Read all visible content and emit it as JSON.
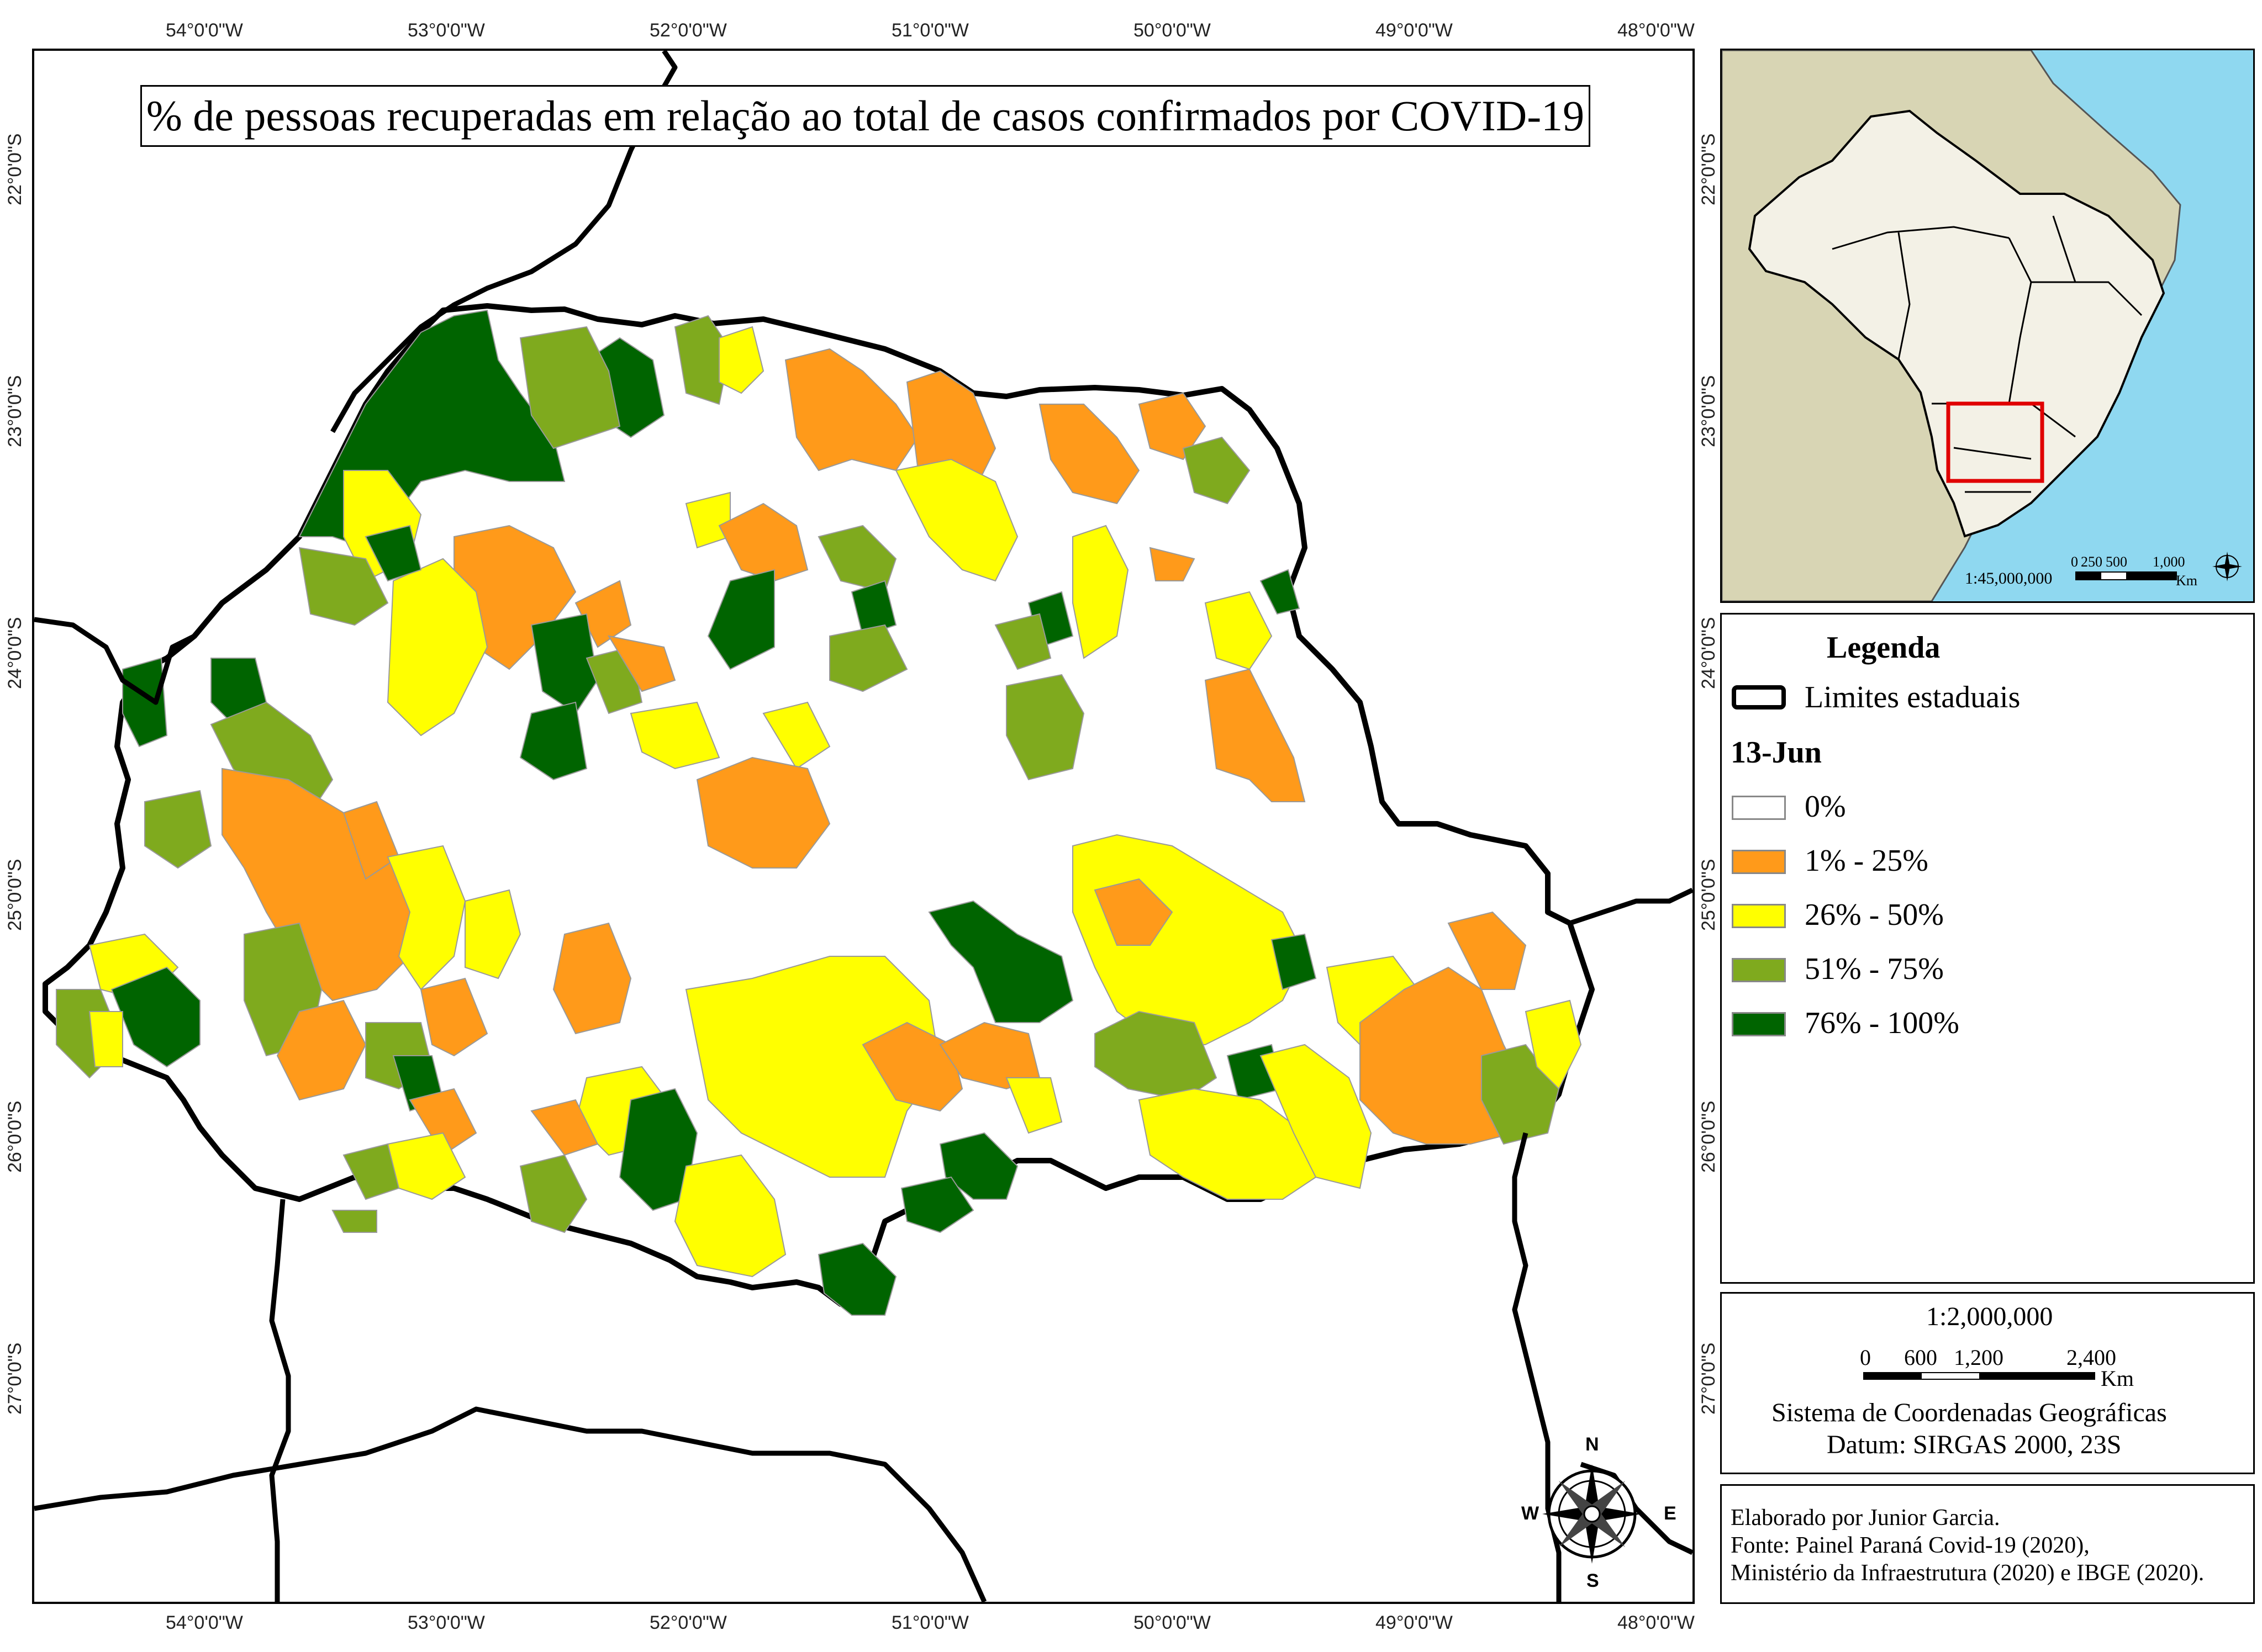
{
  "title": "% de pessoas recuperadas em relação ao total de casos confirmados por COVID-19",
  "lon_ticks": [
    "54°0'0\"W",
    "53°0'0\"W",
    "52°0'0\"W",
    "51°0'0\"W",
    "50°0'0\"W",
    "49°0'0\"W",
    "48°0'0\"W"
  ],
  "lat_ticks": [
    "22°0'0\"S",
    "23°0'0\"S",
    "24°0'0\"S",
    "25°0'0\"S",
    "26°0'0\"S",
    "27°0'0\"S"
  ],
  "inset": {
    "scale_text": "1:45,000,000",
    "scalebar_labels": [
      "0",
      "250",
      "500",
      "1,000"
    ],
    "scalebar_unit": "Km"
  },
  "legend": {
    "title": "Legenda",
    "boundary_label": "Limites estaduais",
    "date": "13-Jun",
    "classes": [
      {
        "label": "0%",
        "color": "#ffffff"
      },
      {
        "label": "1% - 25%",
        "color": "#ff9a1a"
      },
      {
        "label": "26% - 50%",
        "color": "#ffff00"
      },
      {
        "label": "51% - 75%",
        "color": "#7faa1e"
      },
      {
        "label": "76% - 100%",
        "color": "#006400"
      }
    ]
  },
  "scale": {
    "ratio": "1:2,000,000",
    "bar_labels": [
      "0",
      "600",
      "1,200",
      "2,400"
    ],
    "unit": "Km",
    "crs_line1": "Sistema de Coordenadas Geográficas",
    "crs_line2": "Datum: SIRGAS 2000, 23S"
  },
  "credits": {
    "line1": "Elaborado por Junior Garcia.",
    "line2": "Fonte: Painel Paraná Covid-19 (2020),",
    "line3": "Ministério da Infraestrutura (2020) e IBGE (2020)."
  },
  "compass": {
    "n": "N",
    "s": "S",
    "e": "E",
    "w": "W"
  },
  "colors": {
    "zero": "#ffffff",
    "orange": "#ff9a1a",
    "yellow": "#ffff00",
    "lightgreen": "#7faa1e",
    "darkgreen": "#006400",
    "ocean": "#8fd8f0",
    "southamerica": "#d8d5b4",
    "brazil": "#f3f1e6",
    "highlight": "#e00000"
  }
}
